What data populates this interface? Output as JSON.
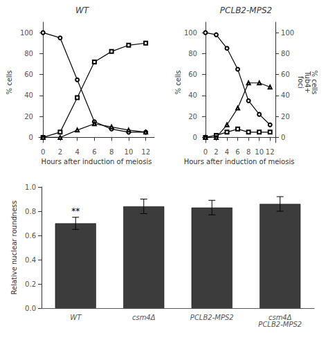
{
  "chart_data": [
    {
      "type": "line",
      "title": "WT",
      "x": [
        0,
        2,
        4,
        6,
        8,
        10,
        12
      ],
      "series": [
        {
          "values": [
            100,
            95,
            55,
            15,
            8,
            5,
            5
          ],
          "marker": "circle",
          "color": "#000000"
        },
        {
          "values": [
            0,
            5,
            38,
            72,
            82,
            88,
            90
          ],
          "marker": "square",
          "color": "#000000"
        },
        {
          "values": [
            0,
            0,
            7,
            13,
            10,
            7,
            5
          ],
          "marker": "triangle",
          "color": "#000000"
        }
      ],
      "xlabel": "Hours after induction of meiosis",
      "ylabel": "% cells",
      "xlim": [
        -0.5,
        13
      ],
      "xticks": [
        0,
        2,
        4,
        6,
        8,
        10,
        12
      ],
      "ylim": [
        -5,
        110
      ],
      "yticks": [
        0,
        20,
        40,
        60,
        80,
        100
      ],
      "grid": false
    },
    {
      "type": "line",
      "title": "PCLB2-MPS2",
      "x": [
        0,
        2,
        4,
        6,
        8,
        10,
        12
      ],
      "series": [
        {
          "values": [
            100,
            98,
            85,
            65,
            35,
            22,
            12
          ],
          "marker": "circle",
          "color": "#000000"
        },
        {
          "values": [
            0,
            2,
            5,
            8,
            5,
            5,
            5
          ],
          "marker": "square",
          "color": "#000000"
        },
        {
          "values": [
            0,
            0,
            12,
            28,
            52,
            52,
            48
          ],
          "marker": "triangle",
          "color": "#000000"
        }
      ],
      "xlabel": "Hours after induction of meiosis",
      "ylabel": "% cells",
      "y2label": "% cells\nTub4+\nfoci",
      "xlim": [
        -0.5,
        13
      ],
      "xticks": [
        0,
        2,
        4,
        6,
        8,
        10,
        12
      ],
      "ylim": [
        -5,
        110
      ],
      "yticks": [
        0,
        20,
        40,
        60,
        80,
        100
      ],
      "y2lim": [
        -5,
        110
      ],
      "y2ticks": [
        0,
        20,
        40,
        60,
        80,
        100
      ],
      "grid": false
    },
    {
      "type": "bar",
      "categories": [
        "WT",
        "csm4Δ",
        "PCLB2-MPS2",
        "csm4Δ\nPCLB2-MPS2"
      ],
      "values": [
        0.7,
        0.84,
        0.83,
        0.86
      ],
      "errors": [
        0.05,
        0.06,
        0.06,
        0.06
      ],
      "color": "#3c3c3c",
      "ylabel": "Relative nuclear roundness",
      "ylim": [
        0,
        1.0
      ],
      "yticks": [
        {
          "value": 0,
          "label": "0.0"
        },
        0.2,
        0.4,
        0.6,
        0.8,
        {
          "value": 1.0,
          "label": "1.0"
        }
      ],
      "annotations": [
        {
          "text": "**",
          "category": "WT"
        }
      ],
      "grid": false
    }
  ]
}
